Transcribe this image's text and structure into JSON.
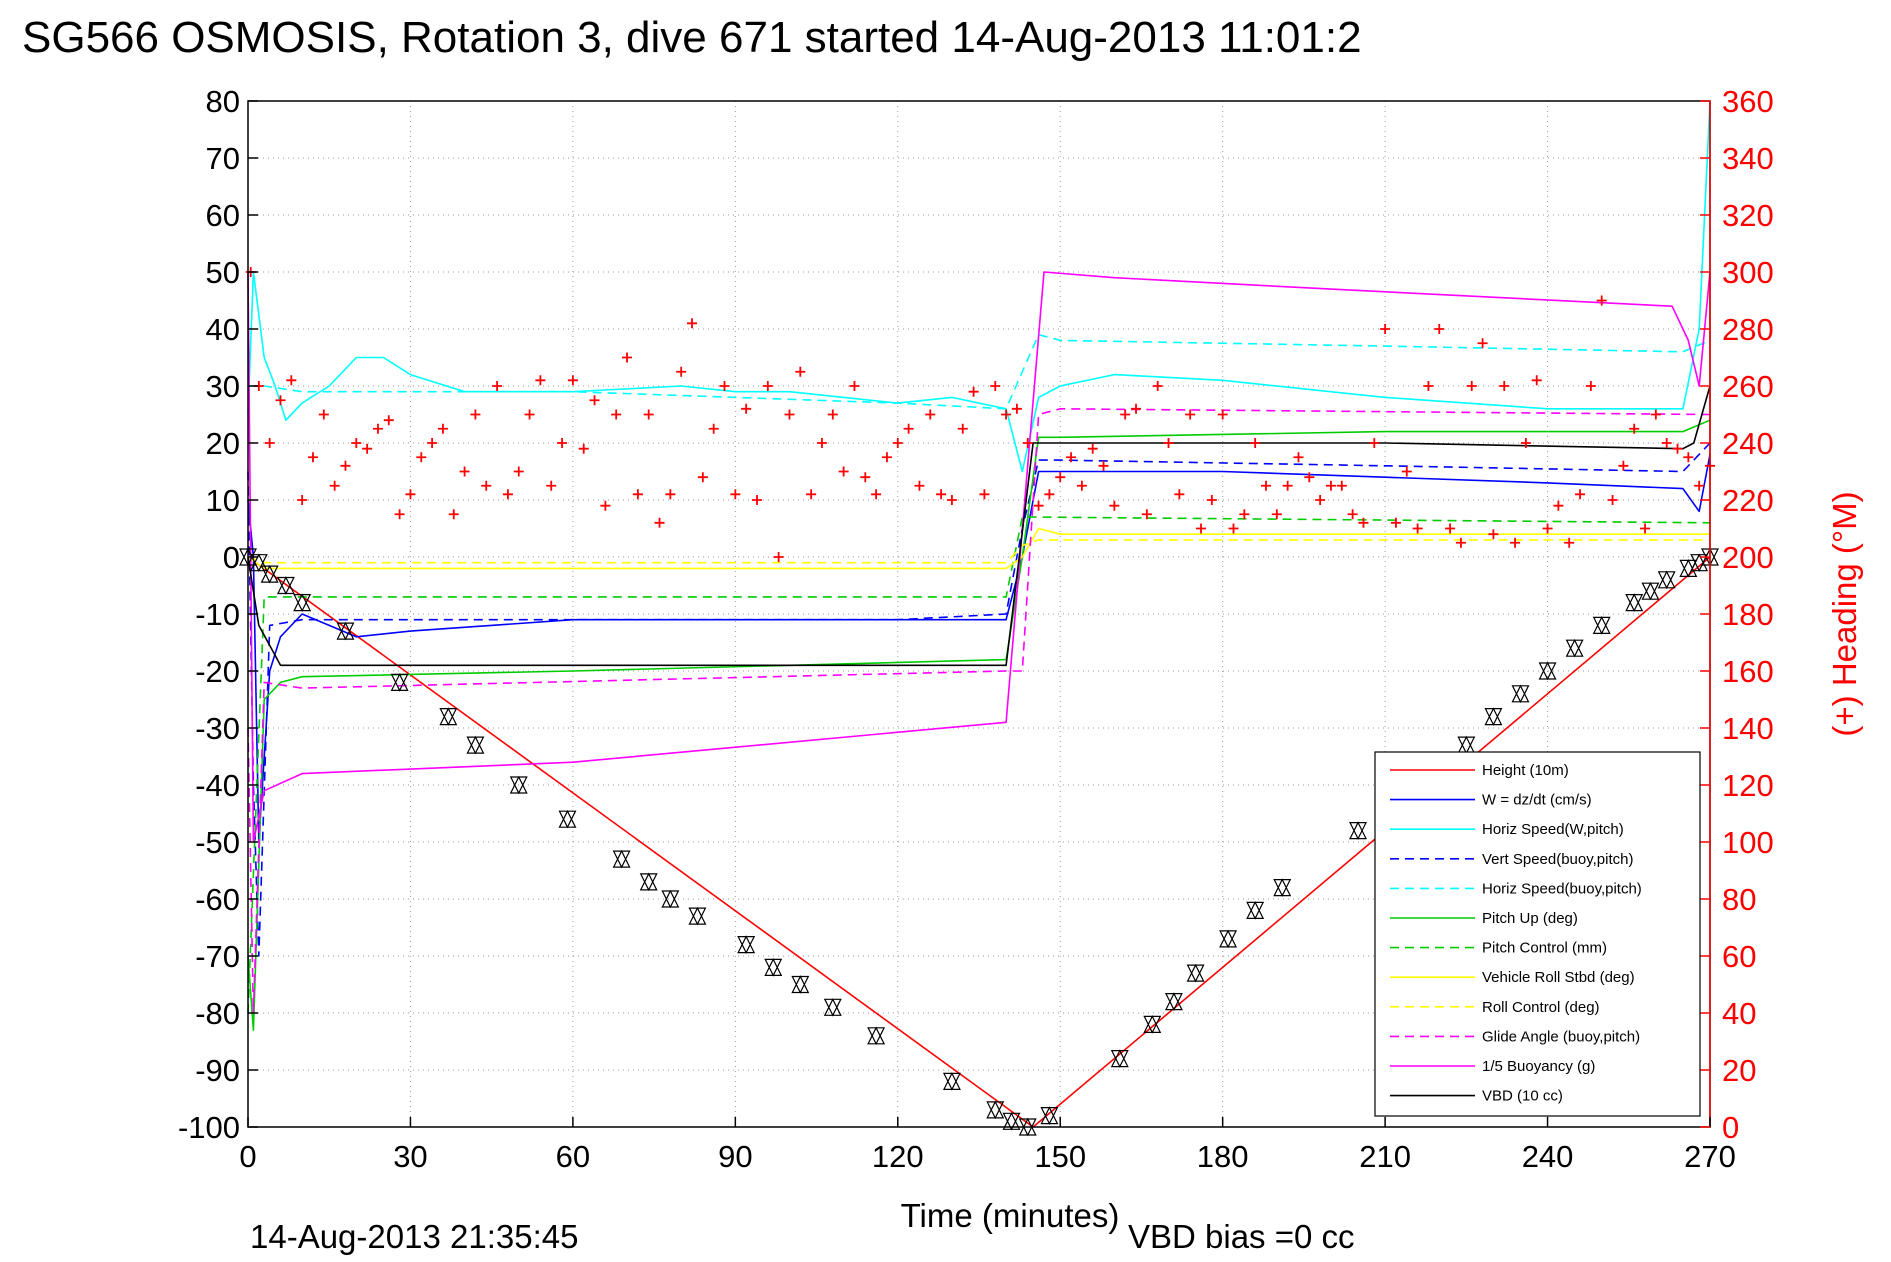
{
  "chart_data": {
    "type": "line",
    "title": "SG566 OSMOSIS, Rotation 3, dive 671 started 14-Aug-2013 11:01:2",
    "xlabel": "Time (minutes)",
    "ylabel_right": "(+) Heading (°M)",
    "xlim": [
      0,
      270
    ],
    "ylim": [
      -100,
      80
    ],
    "ylim_right": [
      0,
      360
    ],
    "x_ticks": [
      "0",
      "30",
      "60",
      "90",
      "120",
      "150",
      "180",
      "210",
      "240",
      "270"
    ],
    "y_ticks": [
      "80",
      "70",
      "60",
      "50",
      "40",
      "30",
      "20",
      "10",
      "0",
      "-10",
      "-20",
      "-30",
      "-40",
      "-50",
      "-60",
      "-70",
      "-80",
      "-90",
      "-100"
    ],
    "y_ticks_right": [
      "360",
      "340",
      "320",
      "300",
      "280",
      "260",
      "240",
      "220",
      "200",
      "180",
      "160",
      "140",
      "120",
      "100",
      "80",
      "60",
      "40",
      "20",
      "0"
    ],
    "grid": true,
    "legend_position": "bottom-right",
    "footer_left": "14-Aug-2013 21:35:45",
    "footer_right": "VBD bias =0 cc",
    "series": [
      {
        "name": "Height (10m)",
        "color": "#ff0000",
        "style": "solid",
        "x": [
          0,
          145,
          270
        ],
        "y": [
          0,
          -100,
          0
        ]
      },
      {
        "name": "W = dz/dt (cm/s)",
        "color": "#0000ff",
        "style": "solid",
        "x": [
          0,
          1,
          2,
          4,
          6,
          10,
          15,
          20,
          30,
          60,
          90,
          120,
          140,
          143,
          146,
          150,
          180,
          210,
          240,
          265,
          268,
          270
        ],
        "y": [
          10,
          0,
          -50,
          -20,
          -14,
          -10,
          -12,
          -14,
          -13,
          -11,
          -11,
          -11,
          -11,
          0,
          15,
          15,
          15,
          14,
          13,
          12,
          8,
          18
        ]
      },
      {
        "name": "Horiz Speed(W,pitch)",
        "color": "#00ffff",
        "style": "solid",
        "x": [
          0,
          1,
          3,
          5,
          7,
          10,
          15,
          20,
          25,
          30,
          40,
          60,
          80,
          90,
          100,
          120,
          130,
          140,
          143,
          146,
          150,
          160,
          180,
          210,
          240,
          265,
          268,
          270
        ],
        "y": [
          25,
          50,
          35,
          30,
          24,
          27,
          30,
          35,
          35,
          32,
          29,
          29,
          30,
          29,
          29,
          27,
          28,
          26,
          15,
          28,
          30,
          32,
          31,
          28,
          26,
          26,
          40,
          80
        ]
      },
      {
        "name": "Vert Speed(buoy,pitch)",
        "color": "#0000ff",
        "style": "dashed",
        "x": [
          0,
          1,
          2,
          4,
          10,
          60,
          120,
          140,
          143,
          146,
          150,
          210,
          265,
          270
        ],
        "y": [
          15,
          -40,
          -70,
          -12,
          -11,
          -11,
          -11,
          -10,
          5,
          17,
          17,
          16,
          15,
          20
        ]
      },
      {
        "name": "Horiz Speed(buoy,pitch)",
        "color": "#00ffff",
        "style": "dashed",
        "x": [
          0,
          3,
          10,
          60,
          120,
          140,
          146,
          150,
          210,
          265,
          270
        ],
        "y": [
          30,
          30,
          29,
          29,
          27,
          26,
          39,
          38,
          37,
          36,
          38
        ]
      },
      {
        "name": "Pitch Up (deg)",
        "color": "#00cc00",
        "style": "solid",
        "x": [
          0,
          1,
          3,
          6,
          10,
          60,
          140,
          143,
          146,
          150,
          210,
          265,
          270
        ],
        "y": [
          -70,
          -83,
          -25,
          -22,
          -21,
          -20,
          -18,
          0,
          21,
          21,
          22,
          22,
          24
        ]
      },
      {
        "name": "Pitch Control (mm)",
        "color": "#00cc00",
        "style": "dashed",
        "x": [
          0,
          3,
          10,
          140,
          143,
          146,
          270
        ],
        "y": [
          -80,
          -7,
          -7,
          -7,
          7,
          7,
          6
        ]
      },
      {
        "name": "Vehicle Roll Stbd (deg)",
        "color": "#ffff00",
        "style": "solid",
        "x": [
          0,
          3,
          10,
          140,
          143,
          146,
          150,
          270
        ],
        "y": [
          0,
          -2,
          -2,
          -2,
          0,
          5,
          4,
          4
        ]
      },
      {
        "name": "Roll Control (deg)",
        "color": "#ffff00",
        "style": "dashed",
        "x": [
          0,
          3,
          10,
          140,
          143,
          146,
          270
        ],
        "y": [
          0,
          -1,
          -1,
          -1,
          2,
          3,
          3
        ]
      },
      {
        "name": "Glide Angle (buoy,pitch)",
        "color": "#ff00ff",
        "style": "dashed",
        "x": [
          0,
          1,
          3,
          10,
          140,
          143,
          146,
          150,
          270
        ],
        "y": [
          -30,
          -80,
          -22,
          -23,
          -20,
          -20,
          25,
          26,
          25
        ]
      },
      {
        "name": "1/5 Buoyancy (g)",
        "color": "#ff00ff",
        "style": "solid",
        "x": [
          0,
          1,
          3,
          10,
          60,
          140,
          147,
          160,
          200,
          263,
          266,
          268,
          270
        ],
        "y": [
          50,
          -50,
          -41,
          -38,
          -36,
          -29,
          50,
          49,
          47,
          44,
          38,
          30,
          50
        ]
      },
      {
        "name": "VBD (10 cc)",
        "color": "#000000",
        "style": "solid",
        "x": [
          0,
          2,
          6,
          140,
          145,
          150,
          210,
          265,
          267,
          270
        ],
        "y": [
          0,
          -12,
          -19,
          -19,
          20,
          20,
          20,
          19,
          20,
          30
        ]
      }
    ],
    "heading_points": {
      "name": "(+) Heading (°M)",
      "color": "#ff0000",
      "marker": "+",
      "axis": "right",
      "x": [
        0.5,
        2,
        4,
        6,
        8,
        10,
        12,
        14,
        16,
        18,
        20,
        22,
        24,
        26,
        28,
        30,
        32,
        34,
        36,
        38,
        40,
        42,
        44,
        46,
        48,
        50,
        52,
        54,
        56,
        58,
        60,
        62,
        64,
        66,
        68,
        70,
        72,
        74,
        76,
        78,
        80,
        82,
        84,
        86,
        88,
        90,
        92,
        94,
        96,
        98,
        100,
        102,
        104,
        106,
        108,
        110,
        112,
        114,
        116,
        118,
        120,
        122,
        124,
        126,
        128,
        130,
        132,
        134,
        136,
        138,
        140,
        142,
        144,
        146,
        148,
        150,
        152,
        154,
        156,
        158,
        160,
        162,
        164,
        166,
        168,
        170,
        172,
        174,
        176,
        178,
        180,
        182,
        184,
        186,
        188,
        190,
        192,
        194,
        196,
        198,
        200,
        202,
        204,
        206,
        208,
        210,
        212,
        214,
        216,
        218,
        220,
        222,
        224,
        226,
        228,
        230,
        232,
        234,
        236,
        238,
        240,
        242,
        244,
        246,
        248,
        250,
        252,
        254,
        256,
        258,
        260,
        262,
        264,
        266,
        268,
        270
      ],
      "y": [
        300,
        260,
        240,
        255,
        262,
        220,
        235,
        250,
        225,
        232,
        240,
        238,
        245,
        248,
        215,
        222,
        235,
        240,
        245,
        215,
        230,
        250,
        225,
        260,
        222,
        230,
        250,
        262,
        225,
        240,
        262,
        238,
        255,
        218,
        250,
        270,
        222,
        250,
        212,
        222,
        265,
        282,
        228,
        245,
        260,
        222,
        252,
        220,
        260,
        200,
        250,
        265,
        222,
        240,
        250,
        230,
        260,
        228,
        222,
        235,
        240,
        245,
        225,
        250,
        222,
        220,
        245,
        258,
        222,
        260,
        250,
        252,
        240,
        218,
        222,
        228,
        235,
        225,
        238,
        232,
        218,
        250,
        252,
        215,
        260,
        240,
        222,
        250,
        210,
        220,
        250,
        210,
        215,
        240,
        225,
        215,
        225,
        235,
        228,
        220,
        225,
        225,
        215,
        212,
        240,
        280,
        212,
        230,
        210,
        260,
        280,
        210,
        205,
        260,
        275,
        208,
        260,
        205,
        240,
        262,
        210,
        218,
        205,
        222,
        260,
        290,
        220,
        232,
        245,
        210,
        250,
        240,
        238,
        235,
        225,
        232
      ]
    },
    "vbd_markers": {
      "marker": "triangle-pair",
      "color": "#000000",
      "x": [
        0,
        2,
        4,
        7,
        10,
        18,
        28,
        37,
        42,
        50,
        59,
        69,
        74,
        78,
        83,
        92,
        97,
        102,
        108,
        116,
        130,
        138,
        141,
        144,
        148,
        161,
        167,
        171,
        175,
        181,
        186,
        191,
        205,
        221,
        225,
        230,
        235,
        240,
        245,
        250,
        256,
        259,
        262,
        266,
        268,
        270
      ],
      "y": [
        0,
        -1,
        -3,
        -5,
        -8,
        -13,
        -22,
        -28,
        -33,
        -40,
        -46,
        -53,
        -57,
        -60,
        -63,
        -68,
        -72,
        -75,
        -79,
        -84,
        -92,
        -97,
        -99,
        -100,
        -98,
        -88,
        -82,
        -78,
        -73,
        -67,
        -62,
        -58,
        -48,
        -38,
        -33,
        -28,
        -24,
        -20,
        -16,
        -12,
        -8,
        -6,
        -4,
        -2,
        -1,
        0
      ]
    }
  }
}
